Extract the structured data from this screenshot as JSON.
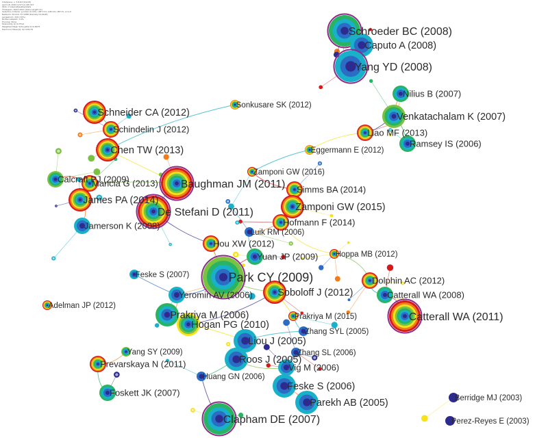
{
  "colors": {
    "background": "#ffffff",
    "label": "#2a2a2a",
    "ring_palette": [
      "#d7191c",
      "#f07d1a",
      "#f7e11a",
      "#7cc242",
      "#28b463",
      "#1ab0c9",
      "#2b6cc4",
      "#2d2b8f"
    ]
  },
  "header_meta": [
    "CiteSpace, v. 5.8.R3 (64-bit)",
    "April 18, 2022 9:47:12 AM CST",
    "WoS: C:\\Users\\Desktop\\data",
    "Timespan: 2003-2021 (Slice Length=1)",
    "Selection Criteria: g-index (k=25), LRF=3.0, L/N=10, LBY=5, e=1.0",
    "Network: N=412, E=1088 (Density=0.0128)",
    "Largest CC: 329 (79%)",
    "Nodes Labeled: 1.0%",
    "Pruning: None",
    "Modularity Q=0.7512",
    "Weighted Mean Silhouette S=0.8975",
    "Harmonic Mean(Q, S)=0.8179"
  ],
  "nodes": [
    {
      "id": "schroeder",
      "label": "Schroeder BC (2008)",
      "size": 3,
      "start": 4
    },
    {
      "id": "caputo",
      "label": "Caputo A (2008)",
      "size": 2,
      "start": 5
    },
    {
      "id": "yang_yd",
      "label": "Yang YD (2008)",
      "size": 3,
      "start": 5
    },
    {
      "id": "nilius",
      "label": "Nilius B (2007)",
      "size": 1,
      "start": 4
    },
    {
      "id": "venkatachalam",
      "label": "Venkatachalam K (2007)",
      "size": 2,
      "start": 3
    },
    {
      "id": "liao",
      "label": "Liao MF (2013)",
      "size": 1,
      "start": 0
    },
    {
      "id": "ramsey",
      "label": "Ramsey IS (2006)",
      "size": 1,
      "start": 4
    },
    {
      "id": "sonkusare",
      "label": "Sonkusare SK (2012)",
      "size": 0,
      "start": 1
    },
    {
      "id": "schneider",
      "label": "Schneider CA (2012)",
      "size": 2,
      "start": 0
    },
    {
      "id": "schindelin",
      "label": "Schindelin J (2012)",
      "size": 1,
      "start": 0
    },
    {
      "id": "chen",
      "label": "Chen TW (2013)",
      "size": 2,
      "start": 0
    },
    {
      "id": "eggermann",
      "label": "Eggermann E (2012)",
      "size": 0,
      "start": 1
    },
    {
      "id": "zamponi2016",
      "label": "Zamponi GW (2016)",
      "size": 0,
      "start": 0
    },
    {
      "id": "calcraft",
      "label": "Calcraft PJ (2009)",
      "size": 1,
      "start": 3
    },
    {
      "id": "mancia",
      "label": "Mancia G (2013)",
      "size": 1,
      "start": 0
    },
    {
      "id": "baughman",
      "label": "Baughman JM (2011)",
      "size": 3,
      "start": 0
    },
    {
      "id": "simms",
      "label": "Simms BA (2014)",
      "size": 1,
      "start": 0
    },
    {
      "id": "james",
      "label": "James PA (2014)",
      "size": 2,
      "start": 0
    },
    {
      "id": "destefani",
      "label": "De Stefani D (2011)",
      "size": 3,
      "start": 0
    },
    {
      "id": "zamponi2015",
      "label": "Zamponi GW (2015)",
      "size": 2,
      "start": 0
    },
    {
      "id": "hofmann",
      "label": "Hofmann F (2014)",
      "size": 1,
      "start": 0
    },
    {
      "id": "jamerson",
      "label": "Jamerson K (2008)",
      "size": 1,
      "start": 5
    },
    {
      "id": "luik",
      "label": "Luik RM (2006)",
      "size": 0,
      "start": 6
    },
    {
      "id": "hou",
      "label": "Hou XW (2012)",
      "size": 1,
      "start": 0
    },
    {
      "id": "hoppa",
      "label": "Hoppa MB (2012)",
      "size": 0,
      "start": 0
    },
    {
      "id": "yuan",
      "label": "Yuan JP (2009)",
      "size": 1,
      "start": 4
    },
    {
      "id": "feske2007",
      "label": "Feske S (2007)",
      "size": 0,
      "start": 5
    },
    {
      "id": "park",
      "label": "Park CY (2009)",
      "size": 4,
      "start": 3
    },
    {
      "id": "dolphin",
      "label": "Dolphin AC (2012)",
      "size": 1,
      "start": 0
    },
    {
      "id": "catterall2008",
      "label": "Catterall WA (2008)",
      "size": 1,
      "start": 4
    },
    {
      "id": "yeromin",
      "label": "Yeromin AV (2006)",
      "size": 1,
      "start": 5
    },
    {
      "id": "soboloff",
      "label": "Soboloff J (2012)",
      "size": 2,
      "start": 0
    },
    {
      "id": "adelman",
      "label": "Adelman JP (2012)",
      "size": 0,
      "start": 0
    },
    {
      "id": "catterall2011",
      "label": "Catterall WA (2011)",
      "size": 3,
      "start": 0
    },
    {
      "id": "prakriya2006",
      "label": "Prakriya M (2006)",
      "size": 2,
      "start": 4
    },
    {
      "id": "hogan",
      "label": "Hogan PG (2010)",
      "size": 2,
      "start": 2
    },
    {
      "id": "prakriya2015",
      "label": "Prakriya M (2015)",
      "size": 0,
      "start": 0
    },
    {
      "id": "zhang_syl",
      "label": "Zhang SYL (2005)",
      "size": 0,
      "start": 6
    },
    {
      "id": "liou",
      "label": "Liou J (2005)",
      "size": 2,
      "start": 5
    },
    {
      "id": "yang_sy",
      "label": "Yang SY (2009)",
      "size": 0,
      "start": 3
    },
    {
      "id": "zhang_sl",
      "label": "Zhang SL (2006)",
      "size": 0,
      "start": 6
    },
    {
      "id": "prevarskaya",
      "label": "Prevarskaya N (2011)",
      "size": 1,
      "start": 0
    },
    {
      "id": "roos",
      "label": "Roos J (2005)",
      "size": 2,
      "start": 5
    },
    {
      "id": "vig",
      "label": "Vig M (2006)",
      "size": 1,
      "start": 5
    },
    {
      "id": "huang",
      "label": "Huang GN (2006)",
      "size": 0,
      "start": 6
    },
    {
      "id": "feske2006",
      "label": "Feske S (2006)",
      "size": 2,
      "start": 5
    },
    {
      "id": "foskett",
      "label": "Foskett JK (2007)",
      "size": 1,
      "start": 4
    },
    {
      "id": "parekh",
      "label": "Parekh AB (2005)",
      "size": 2,
      "start": 5
    },
    {
      "id": "berridge",
      "label": "Berridge MJ (2003)",
      "size": 0,
      "start": 7
    },
    {
      "id": "clapham",
      "label": "Clapham DE (2007)",
      "size": 3,
      "start": 4
    },
    {
      "id": "perez_reyes",
      "label": "Perez-Reyes E (2003)",
      "size": 0,
      "start": 7
    }
  ],
  "links": [
    [
      "schroeder",
      "caputo"
    ],
    [
      "schroeder",
      "yang_yd"
    ],
    [
      "caputo",
      "yang_yd"
    ],
    [
      "venkatachalam",
      "nilius"
    ],
    [
      "venkatachalam",
      "ramsey"
    ],
    [
      "venkatachalam",
      "liao"
    ],
    [
      "liao",
      "eggermann"
    ],
    [
      "eggermann",
      "zamponi2016"
    ],
    [
      "zamponi2016",
      "simms"
    ],
    [
      "simms",
      "zamponi2015"
    ],
    [
      "zamponi2015",
      "hofmann"
    ],
    [
      "hofmann",
      "luik"
    ],
    [
      "schneider",
      "schindelin"
    ],
    [
      "schindelin",
      "chen"
    ],
    [
      "chen",
      "baughman"
    ],
    [
      "sonkusare",
      "chen"
    ],
    [
      "calcraft",
      "mancia"
    ],
    [
      "mancia",
      "baughman"
    ],
    [
      "james",
      "mancia"
    ],
    [
      "james",
      "jamerson"
    ],
    [
      "baughman",
      "destefani"
    ],
    [
      "destefani",
      "hou"
    ],
    [
      "hou",
      "park"
    ],
    [
      "luik",
      "yuan"
    ],
    [
      "yuan",
      "park"
    ],
    [
      "park",
      "soboloff"
    ],
    [
      "park",
      "yeromin"
    ],
    [
      "yeromin",
      "prakriya2006"
    ],
    [
      "prakriya2006",
      "hogan"
    ],
    [
      "hogan",
      "soboloff"
    ],
    [
      "hogan",
      "liou"
    ],
    [
      "liou",
      "zhang_syl"
    ],
    [
      "liou",
      "roos"
    ],
    [
      "roos",
      "vig"
    ],
    [
      "vig",
      "feske2006"
    ],
    [
      "feske2006",
      "parekh"
    ],
    [
      "roos",
      "huang"
    ],
    [
      "huang",
      "clapham"
    ],
    [
      "soboloff",
      "prakriya2015"
    ],
    [
      "dolphin",
      "catterall2008"
    ],
    [
      "catterall2008",
      "catterall2011"
    ],
    [
      "hoppa",
      "dolphin"
    ],
    [
      "feske2007",
      "yeromin"
    ],
    [
      "yang_sy",
      "prevarskaya"
    ],
    [
      "prevarskaya",
      "foskett"
    ],
    [
      "zhang_sl",
      "vig"
    ],
    [
      "hofmann",
      "hoppa"
    ],
    [
      "prakriya2015",
      "zhang_syl"
    ]
  ],
  "minor_nodes": 60
}
